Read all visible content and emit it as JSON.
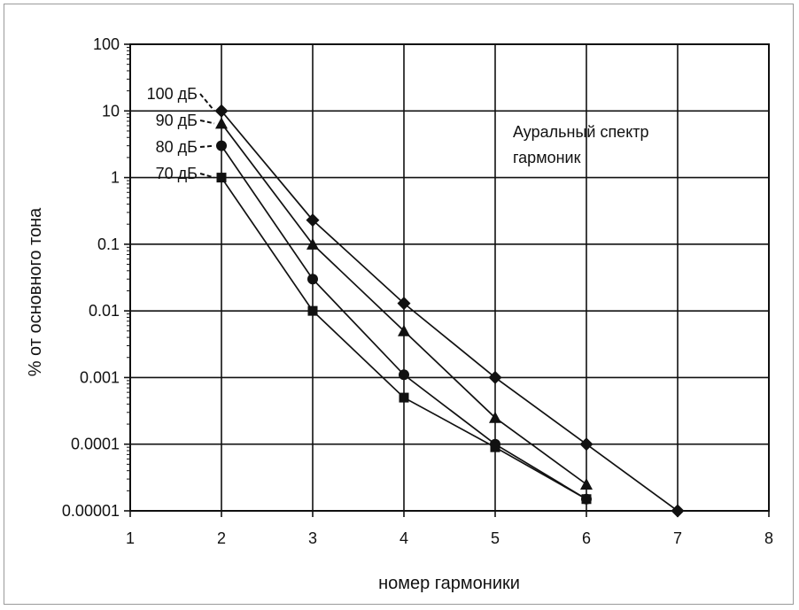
{
  "chart_data": {
    "type": "line",
    "title": "",
    "xlabel": "номер гармоники",
    "ylabel": "% от основного тона",
    "xlim": [
      1,
      8
    ],
    "ylim": [
      1e-05,
      100
    ],
    "yscale": "log",
    "grid": true,
    "x_ticks": [
      "1",
      "2",
      "3",
      "4",
      "5",
      "6",
      "7",
      "8"
    ],
    "y_ticks": [
      "100",
      "10",
      "1",
      "0.1",
      "0.01",
      "0.001",
      "0.0001",
      "0.00001"
    ],
    "annotation": [
      "Аурaльный спектр",
      "гармоник"
    ],
    "series": [
      {
        "name": "100 дБ",
        "marker": "diamond",
        "x": [
          2,
          3,
          4,
          5,
          6,
          7
        ],
        "y": [
          10,
          0.23,
          0.013,
          0.001,
          0.0001,
          1e-05
        ]
      },
      {
        "name": "90 дБ",
        "marker": "triangle",
        "x": [
          2,
          3,
          4,
          5,
          6
        ],
        "y": [
          6.5,
          0.1,
          0.005,
          0.00025,
          2.5e-05
        ]
      },
      {
        "name": "80 дБ",
        "marker": "circle",
        "x": [
          2,
          3,
          4,
          5,
          6
        ],
        "y": [
          3,
          0.03,
          0.0011,
          0.0001,
          1.5e-05
        ]
      },
      {
        "name": "70 дБ",
        "marker": "square",
        "x": [
          2,
          3,
          4,
          5,
          6
        ],
        "y": [
          1,
          0.01,
          0.0005,
          9e-05,
          1.5e-05
        ]
      }
    ]
  }
}
